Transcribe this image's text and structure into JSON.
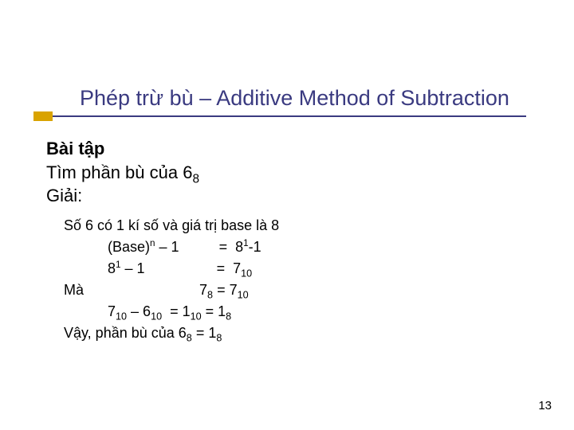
{
  "title": "Phép trừ bù – Additive Method of Subtraction",
  "accent_color": "#d9a300",
  "underline_color": "#3a3a80",
  "title_color": "#3a3a80",
  "body1": {
    "l1": "Bài tập",
    "l2_pre": "Tìm phần bù của 6",
    "l2_sub": "8",
    "l3": "Giải:"
  },
  "body2": {
    "r1": "Số 6 có 1 kí số và giá trị base là 8",
    "r2_a": "           (Base)",
    "r2_sup": "n",
    "r2_b": " – 1          =  8",
    "r2_sup2": "1",
    "r2_c": "-1",
    "r3_a": "           8",
    "r3_sup": "1",
    "r3_b": " – 1                  =  7",
    "r3_sub": "10",
    "r4_a": "Mà                             7",
    "r4_sub1": "8",
    "r4_b": " = 7",
    "r4_sub2": "10",
    "r5_a": "           7",
    "r5_sub1": "10",
    "r5_b": " – 6",
    "r5_sub2": "10",
    "r5_c": "  = 1",
    "r5_sub3": "10",
    "r5_d": " = 1",
    "r5_sub4": "8",
    "r6_a": "Vậy, phần bù của 6",
    "r6_sub1": "8",
    "r6_b": " = 1",
    "r6_sub2": "8"
  },
  "page_number": "13"
}
